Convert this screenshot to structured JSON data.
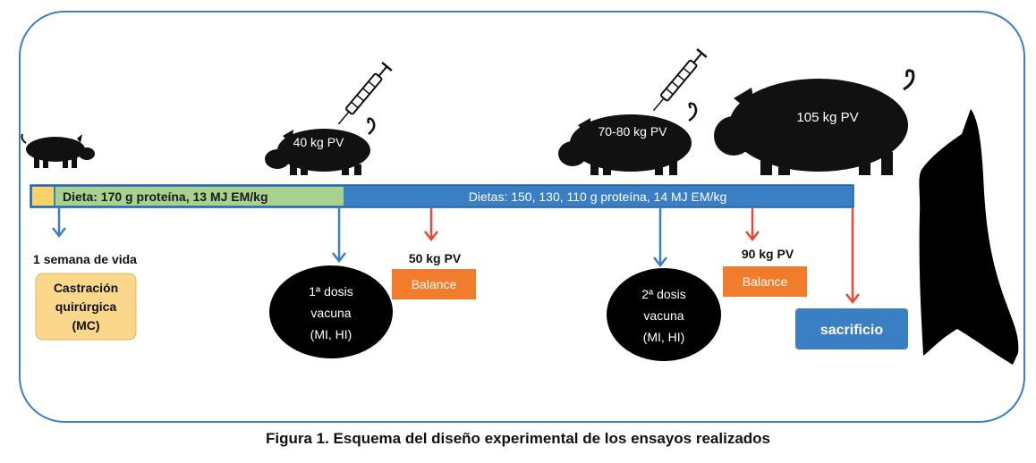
{
  "timeline": {
    "diet1_label": "Dieta: 170 g proteína, 13 MJ EM/kg",
    "diet2_label": "Dietas:  150, 130, 110 g proteína, 14 MJ EM/kg",
    "colors": {
      "bar_blue": "#3a7fc4",
      "bar_border": "#1f5f9c",
      "diet1_green": "#a9d18e",
      "start_yellow": "#f9d26a",
      "arrow_blue": "#3a7fc4",
      "arrow_red": "#e8473b"
    }
  },
  "pigs": {
    "pig2_label": "40 kg PV",
    "pig3_label": "70-80 kg PV",
    "pig4_label": "105 kg PV"
  },
  "events": {
    "week_label": "1 semana de vida",
    "castration_line1": "Castración",
    "castration_line2": "quirúrgica",
    "castration_line3": "(MC)",
    "dose1_line1": "1ª dosis",
    "dose1_line2": "vacuna",
    "dose1_line3": "(MI, HI)",
    "weight50_label": "50 kg PV",
    "balance1_label": "Balance",
    "dose2_line1": "2ª dosis",
    "dose2_line2": "vacuna",
    "dose2_line3": "(MI, HI)",
    "weight90_label": "90 kg PV",
    "balance2_label": "Balance",
    "slaughter_label": "sacrificio",
    "colors": {
      "castration_fill": "#fad78a",
      "balance_orange": "#f07c2c",
      "slaughter_blue": "#3a7fc4",
      "dose_black": "#000000"
    }
  },
  "caption": "Figura 1. Esquema del diseño experimental de los ensayos realizados"
}
